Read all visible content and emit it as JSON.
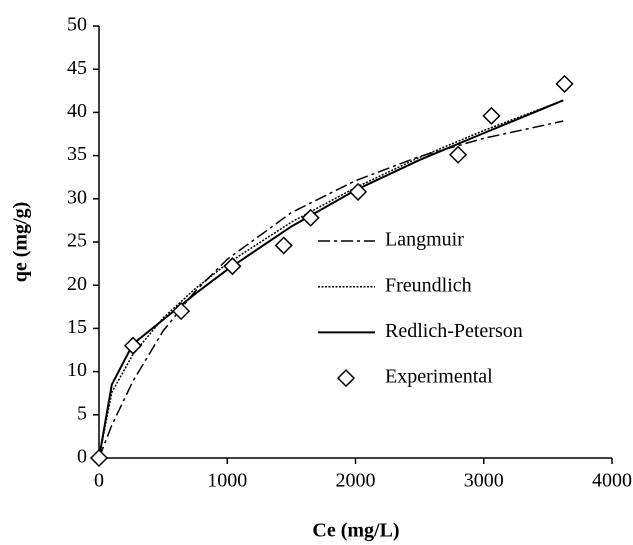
{
  "chart_data": {
    "type": "line",
    "x_label": "Ce (mg/L)",
    "y_label": "qe (mg/g)",
    "xlim": [
      0,
      4000
    ],
    "xticks": [
      0,
      1000,
      2000,
      3000,
      4000
    ],
    "ylim": [
      0,
      50
    ],
    "yticks": [
      0,
      5,
      10,
      15,
      20,
      25,
      30,
      35,
      40,
      45,
      50
    ],
    "grid": false,
    "legend": "right",
    "series": [
      {
        "name": "Langmuir",
        "color": "#000000",
        "dash": "dash-dot",
        "marker": "none",
        "x": [
          0,
          100,
          265,
          500,
          750,
          1000,
          1500,
          2000,
          2500,
          3000,
          3620
        ],
        "values": [
          0,
          3.8,
          8.9,
          14.7,
          19.3,
          23.0,
          28.4,
          32.1,
          34.9,
          37.0,
          39.0
        ]
      },
      {
        "name": "Freundlich",
        "color": "#000000",
        "dash": "dotted",
        "marker": "none",
        "x": [
          0,
          100,
          265,
          500,
          750,
          1000,
          1500,
          2000,
          2500,
          3000,
          3620
        ],
        "values": [
          0,
          7.6,
          12.0,
          16.2,
          19.6,
          22.5,
          27.3,
          31.3,
          34.8,
          37.9,
          41.4
        ]
      },
      {
        "name": "Redlich-Peterson",
        "color": "#000000",
        "dash": "solid",
        "marker": "none",
        "x": [
          0,
          100,
          265,
          500,
          750,
          1000,
          1500,
          2000,
          2500,
          3000,
          3620
        ],
        "values": [
          0,
          8.5,
          13.2,
          16.0,
          19.0,
          21.8,
          26.8,
          31.0,
          34.5,
          37.6,
          41.4
        ]
      },
      {
        "name": "Experimental",
        "color": "#000000",
        "dash": "none",
        "marker": "diamond",
        "x": [
          0,
          265,
          640,
          1040,
          1440,
          1650,
          2020,
          2800,
          3060,
          3630
        ],
        "values": [
          0,
          13.0,
          17.0,
          22.2,
          24.6,
          27.8,
          30.8,
          35.1,
          39.6,
          43.3
        ]
      }
    ]
  }
}
